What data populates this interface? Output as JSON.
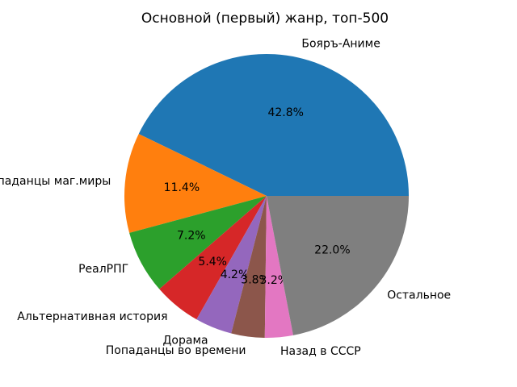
{
  "title": "Основной (первый) жанр, топ-500",
  "chart_data": {
    "type": "pie",
    "title": "Основной (первый) жанр, топ-500",
    "categories": [
      "Бояръ-Аниме",
      "Попаданцы маг.миры",
      "РеалРПГ",
      "Альтернативная история",
      "Дорама",
      "Попаданцы во времени",
      "Назад в СССР",
      "Остальное"
    ],
    "values": [
      42.8,
      11.4,
      7.2,
      5.4,
      4.2,
      3.8,
      3.2,
      22.0
    ],
    "percent_labels": [
      "42.8%",
      "11.4%",
      "7.2%",
      "5.4%",
      "4.2%",
      "3.8%",
      "3.2%",
      "22.0%"
    ],
    "colors": [
      "#1f77b4",
      "#ff7f0e",
      "#2ca02c",
      "#d62728",
      "#9467bd",
      "#8c564b",
      "#e377c2",
      "#7f7f7f"
    ],
    "start_angle_deg": 0,
    "direction": "counterclockwise",
    "label_distance": 1.1,
    "pct_distance": 0.6,
    "legend": "none",
    "background": "#ffffff",
    "text_color": "#000000"
  }
}
